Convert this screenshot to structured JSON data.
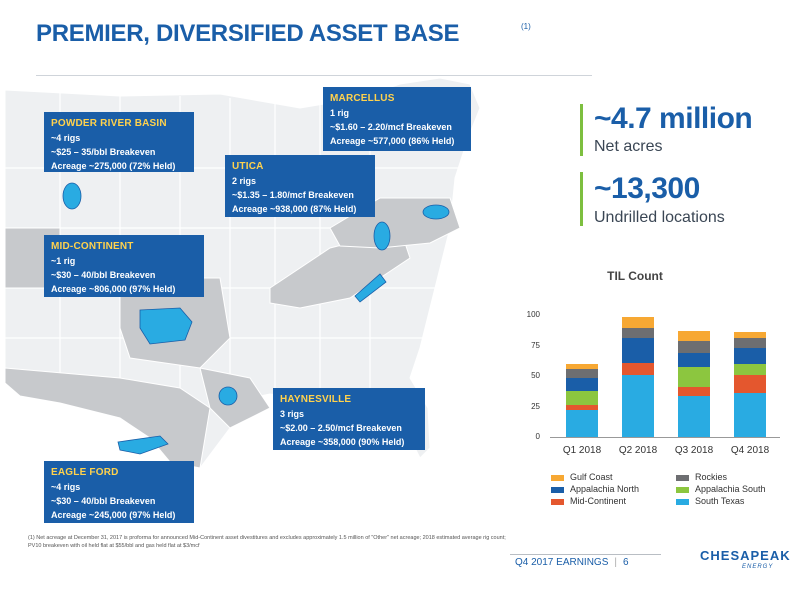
{
  "header": {
    "title": "PREMIER, DIVERSIFIED ASSET BASE",
    "footnote_ref": "(1)"
  },
  "callouts": [
    {
      "key": "powder",
      "name": "POWDER RIVER BASIN",
      "lines": [
        "~4 rigs",
        "~$25 – 35/bbl Breakeven",
        "Acreage ~275,000 (72% Held)"
      ]
    },
    {
      "key": "marcellus",
      "name": "MARCELLUS",
      "lines": [
        "1 rig",
        "~$1.60 – 2.20/mcf Breakeven",
        "Acreage ~577,000 (86% Held)"
      ]
    },
    {
      "key": "utica",
      "name": "UTICA",
      "lines": [
        "2 rigs",
        "~$1.35 – 1.80/mcf Breakeven",
        "Acreage ~938,000 (87% Held)"
      ]
    },
    {
      "key": "midcon",
      "name": "MID-CONTINENT",
      "lines": [
        "~1 rig",
        "~$30 – 40/bbl Breakeven",
        "Acreage ~806,000 (97% Held)"
      ]
    },
    {
      "key": "haynesville",
      "name": "HAYNESVILLE",
      "lines": [
        "3 rigs",
        "~$2.00 – 2.50/mcf Breakeven",
        "Acreage ~358,000 (90% Held)"
      ]
    },
    {
      "key": "eagleford",
      "name": "EAGLE FORD",
      "lines": [
        "~4 rigs",
        "~$30 – 40/bbl Breakeven",
        "Acreage ~245,000 (97% Held)"
      ]
    }
  ],
  "stats": [
    {
      "value": "~4.7 million",
      "label": "Net acres"
    },
    {
      "value": "~13,300",
      "label": "Undrilled locations"
    }
  ],
  "chart_data": {
    "type": "bar",
    "stacked": true,
    "title": "TIL Count",
    "categories": [
      "Q1 2018",
      "Q2 2018",
      "Q3 2018",
      "Q4 2018"
    ],
    "ylim": [
      0,
      100
    ],
    "yticks": [
      0,
      25,
      50,
      75,
      100
    ],
    "grid": false,
    "legend_position": "bottom",
    "series": [
      {
        "name": "South Texas",
        "color": "#29abe2",
        "values": [
          22,
          51,
          34,
          36
        ]
      },
      {
        "name": "Mid-Continent",
        "color": "#e4572e",
        "values": [
          4,
          10,
          7,
          15
        ]
      },
      {
        "name": "Appalachia South",
        "color": "#8cc63f",
        "values": [
          12,
          0,
          16,
          9
        ]
      },
      {
        "name": "Appalachia North",
        "color": "#1a5ea8",
        "values": [
          10,
          20,
          12,
          13
        ]
      },
      {
        "name": "Rockies",
        "color": "#6d6e71",
        "values": [
          8,
          8,
          10,
          8
        ]
      },
      {
        "name": "Gulf Coast",
        "color": "#f7a833",
        "values": [
          4,
          9,
          8,
          5
        ]
      }
    ],
    "legend_order": [
      "Gulf Coast",
      "Rockies",
      "Appalachia North",
      "Appalachia South",
      "Mid-Continent",
      "South Texas"
    ]
  },
  "footnote": "(1) Net acreage at December 31, 2017 is proforma for announced Mid-Continent asset divestitures and excludes approximately 1.5 million of \"Other\" net acreage; 2018 estimated average rig count; PV10 breakeven with oil held flat at $55/bbl and gas held flat at $3/mcf",
  "footer": {
    "label": "Q4 2017 EARNINGS",
    "page": "6"
  },
  "logo": {
    "name": "CHESAPEAKE",
    "sub": "ENERGY"
  }
}
